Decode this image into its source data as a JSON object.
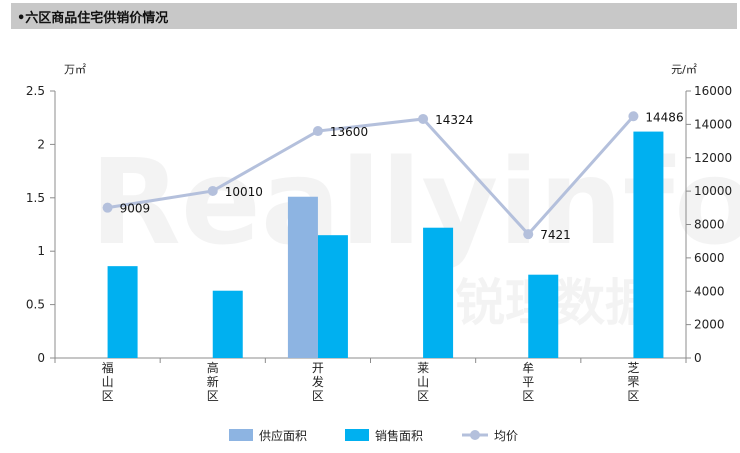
{
  "header": {
    "title": "•六区商品住宅供销价情况"
  },
  "watermark": {
    "brand": "Reallyinfo",
    "brand_cn": "锐理数据"
  },
  "colors": {
    "supply": "#8db4e2",
    "sales": "#00b0f0",
    "price": "#b4c0dc",
    "axis": "#8c8c8c",
    "header_bg": "#c8c8c8"
  },
  "chart_data": {
    "type": "bar",
    "categories": [
      "福山区",
      "高新区",
      "开发区",
      "莱山区",
      "牟平区",
      "芝罘区"
    ],
    "series": [
      {
        "name": "供应面积",
        "type": "bar",
        "axis": "left",
        "values": [
          0,
          0,
          1.51,
          0,
          0,
          0
        ]
      },
      {
        "name": "销售面积",
        "type": "bar",
        "axis": "left",
        "values": [
          0.86,
          0.63,
          1.15,
          1.22,
          0.78,
          2.12
        ]
      },
      {
        "name": "均价",
        "type": "line",
        "axis": "right",
        "values": [
          9009,
          10010,
          13600,
          14324,
          7421,
          14486
        ],
        "labels": [
          "9009",
          "10010",
          "13600",
          "14324",
          "7421",
          "14486"
        ]
      }
    ],
    "ylabel": "万㎡",
    "y2label": "元/㎡",
    "ylim": [
      0,
      2.5
    ],
    "y2lim": [
      0,
      16000
    ],
    "yticks": [
      "0",
      "0.5",
      "1",
      "1.5",
      "2",
      "2.5"
    ],
    "y2ticks": [
      "0",
      "2000",
      "4000",
      "6000",
      "8000",
      "10000",
      "12000",
      "14000",
      "16000"
    ],
    "legend_position": "bottom-center",
    "grid": false
  }
}
